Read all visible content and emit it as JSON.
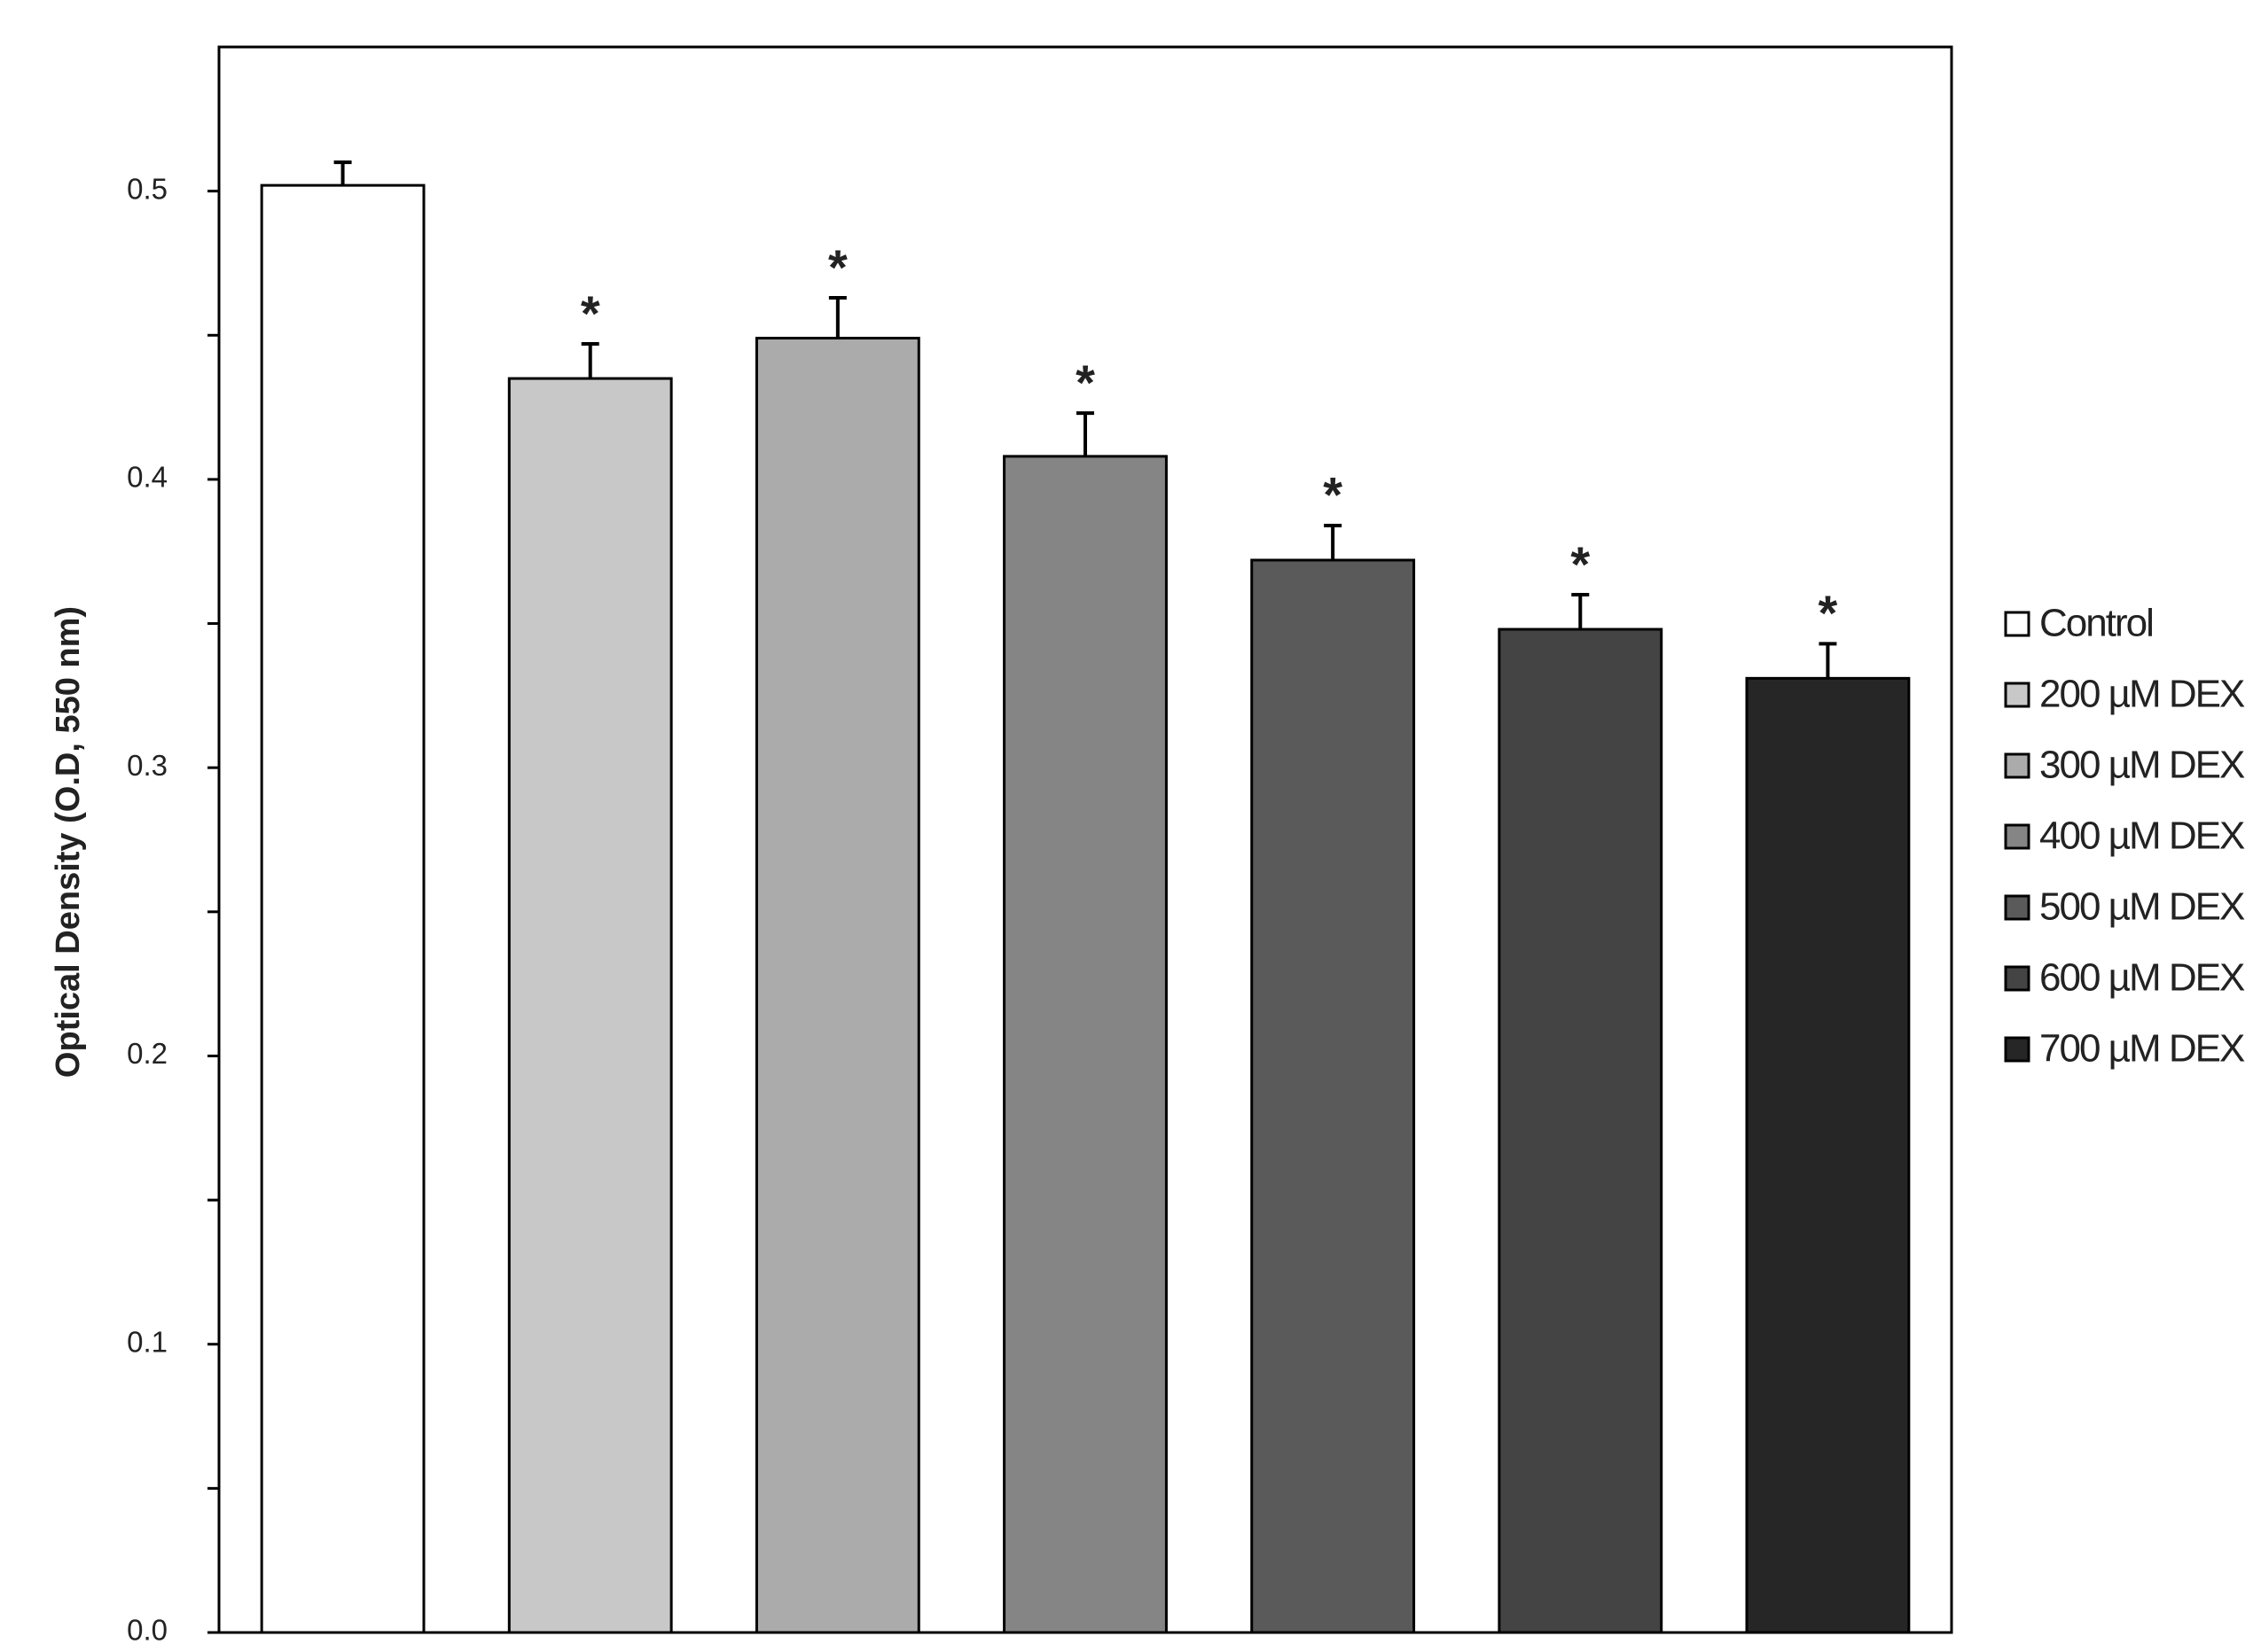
{
  "chart_data": {
    "type": "bar",
    "y_label": "Optical Density (O.D, 550 nm)",
    "ylim": [
      0,
      0.55
    ],
    "yticks": [
      {
        "value": 0,
        "label": "0.0"
      },
      0.1,
      0.2,
      0.3,
      0.4,
      0.5
    ],
    "minor_yticks": [
      0.05,
      0.15,
      0.25,
      0.35,
      0.45
    ],
    "legend": "right",
    "series": [
      {
        "name": "Control",
        "color": "#ffffff",
        "values": [
          0.502
        ],
        "errors": [
          0.008
        ]
      },
      {
        "name": "200 µM DEX",
        "color": "#c8c8c8",
        "values": [
          0.435
        ],
        "errors": [
          0.012
        ],
        "annotation": "*"
      },
      {
        "name": "300 µM DEX",
        "color": "#ababab",
        "values": [
          0.449
        ],
        "errors": [
          0.014
        ],
        "annotation": "*"
      },
      {
        "name": "400 µM DEX",
        "color": "#858585",
        "values": [
          0.408
        ],
        "errors": [
          0.015
        ],
        "annotation": "*"
      },
      {
        "name": "500 µM DEX",
        "color": "#5a5a5a",
        "values": [
          0.372
        ],
        "errors": [
          0.012
        ],
        "annotation": "*"
      },
      {
        "name": "600 µM DEX",
        "color": "#444444",
        "values": [
          0.348
        ],
        "errors": [
          0.012
        ],
        "annotation": "*"
      },
      {
        "name": "700 µM DEX",
        "color": "#262626",
        "values": [
          0.331
        ],
        "errors": [
          0.012
        ],
        "annotation": "*"
      }
    ]
  }
}
